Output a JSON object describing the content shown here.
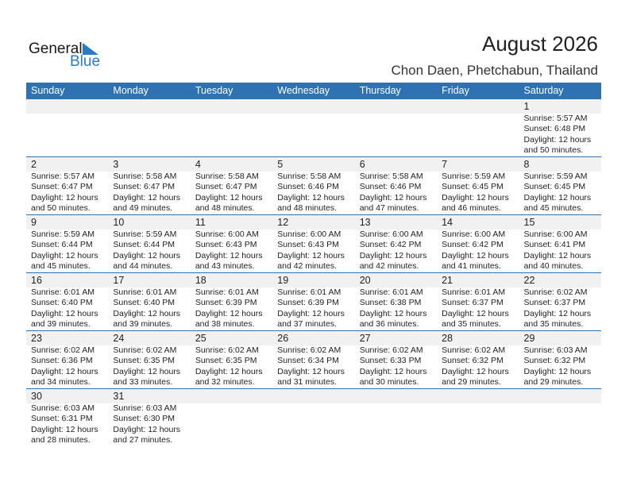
{
  "logo": {
    "word1": "General",
    "word2": "Blue"
  },
  "header": {
    "title": "August 2026",
    "location": "Chon Daen, Phetchabun, Thailand"
  },
  "colors": {
    "accent": "#2e72b4",
    "band": "#f1f1f1"
  },
  "weekdays": [
    "Sunday",
    "Monday",
    "Tuesday",
    "Wednesday",
    "Thursday",
    "Friday",
    "Saturday"
  ],
  "weeks": [
    [
      null,
      null,
      null,
      null,
      null,
      null,
      {
        "day": "1",
        "sunrise": "Sunrise: 5:57 AM",
        "sunset": "Sunset: 6:48 PM",
        "daylight1": "Daylight: 12 hours",
        "daylight2": "and 50 minutes."
      }
    ],
    [
      {
        "day": "2",
        "sunrise": "Sunrise: 5:57 AM",
        "sunset": "Sunset: 6:47 PM",
        "daylight1": "Daylight: 12 hours",
        "daylight2": "and 50 minutes."
      },
      {
        "day": "3",
        "sunrise": "Sunrise: 5:58 AM",
        "sunset": "Sunset: 6:47 PM",
        "daylight1": "Daylight: 12 hours",
        "daylight2": "and 49 minutes."
      },
      {
        "day": "4",
        "sunrise": "Sunrise: 5:58 AM",
        "sunset": "Sunset: 6:47 PM",
        "daylight1": "Daylight: 12 hours",
        "daylight2": "and 48 minutes."
      },
      {
        "day": "5",
        "sunrise": "Sunrise: 5:58 AM",
        "sunset": "Sunset: 6:46 PM",
        "daylight1": "Daylight: 12 hours",
        "daylight2": "and 48 minutes."
      },
      {
        "day": "6",
        "sunrise": "Sunrise: 5:58 AM",
        "sunset": "Sunset: 6:46 PM",
        "daylight1": "Daylight: 12 hours",
        "daylight2": "and 47 minutes."
      },
      {
        "day": "7",
        "sunrise": "Sunrise: 5:59 AM",
        "sunset": "Sunset: 6:45 PM",
        "daylight1": "Daylight: 12 hours",
        "daylight2": "and 46 minutes."
      },
      {
        "day": "8",
        "sunrise": "Sunrise: 5:59 AM",
        "sunset": "Sunset: 6:45 PM",
        "daylight1": "Daylight: 12 hours",
        "daylight2": "and 45 minutes."
      }
    ],
    [
      {
        "day": "9",
        "sunrise": "Sunrise: 5:59 AM",
        "sunset": "Sunset: 6:44 PM",
        "daylight1": "Daylight: 12 hours",
        "daylight2": "and 45 minutes."
      },
      {
        "day": "10",
        "sunrise": "Sunrise: 5:59 AM",
        "sunset": "Sunset: 6:44 PM",
        "daylight1": "Daylight: 12 hours",
        "daylight2": "and 44 minutes."
      },
      {
        "day": "11",
        "sunrise": "Sunrise: 6:00 AM",
        "sunset": "Sunset: 6:43 PM",
        "daylight1": "Daylight: 12 hours",
        "daylight2": "and 43 minutes."
      },
      {
        "day": "12",
        "sunrise": "Sunrise: 6:00 AM",
        "sunset": "Sunset: 6:43 PM",
        "daylight1": "Daylight: 12 hours",
        "daylight2": "and 42 minutes."
      },
      {
        "day": "13",
        "sunrise": "Sunrise: 6:00 AM",
        "sunset": "Sunset: 6:42 PM",
        "daylight1": "Daylight: 12 hours",
        "daylight2": "and 42 minutes."
      },
      {
        "day": "14",
        "sunrise": "Sunrise: 6:00 AM",
        "sunset": "Sunset: 6:42 PM",
        "daylight1": "Daylight: 12 hours",
        "daylight2": "and 41 minutes."
      },
      {
        "day": "15",
        "sunrise": "Sunrise: 6:00 AM",
        "sunset": "Sunset: 6:41 PM",
        "daylight1": "Daylight: 12 hours",
        "daylight2": "and 40 minutes."
      }
    ],
    [
      {
        "day": "16",
        "sunrise": "Sunrise: 6:01 AM",
        "sunset": "Sunset: 6:40 PM",
        "daylight1": "Daylight: 12 hours",
        "daylight2": "and 39 minutes."
      },
      {
        "day": "17",
        "sunrise": "Sunrise: 6:01 AM",
        "sunset": "Sunset: 6:40 PM",
        "daylight1": "Daylight: 12 hours",
        "daylight2": "and 39 minutes."
      },
      {
        "day": "18",
        "sunrise": "Sunrise: 6:01 AM",
        "sunset": "Sunset: 6:39 PM",
        "daylight1": "Daylight: 12 hours",
        "daylight2": "and 38 minutes."
      },
      {
        "day": "19",
        "sunrise": "Sunrise: 6:01 AM",
        "sunset": "Sunset: 6:39 PM",
        "daylight1": "Daylight: 12 hours",
        "daylight2": "and 37 minutes."
      },
      {
        "day": "20",
        "sunrise": "Sunrise: 6:01 AM",
        "sunset": "Sunset: 6:38 PM",
        "daylight1": "Daylight: 12 hours",
        "daylight2": "and 36 minutes."
      },
      {
        "day": "21",
        "sunrise": "Sunrise: 6:01 AM",
        "sunset": "Sunset: 6:37 PM",
        "daylight1": "Daylight: 12 hours",
        "daylight2": "and 35 minutes."
      },
      {
        "day": "22",
        "sunrise": "Sunrise: 6:02 AM",
        "sunset": "Sunset: 6:37 PM",
        "daylight1": "Daylight: 12 hours",
        "daylight2": "and 35 minutes."
      }
    ],
    [
      {
        "day": "23",
        "sunrise": "Sunrise: 6:02 AM",
        "sunset": "Sunset: 6:36 PM",
        "daylight1": "Daylight: 12 hours",
        "daylight2": "and 34 minutes."
      },
      {
        "day": "24",
        "sunrise": "Sunrise: 6:02 AM",
        "sunset": "Sunset: 6:35 PM",
        "daylight1": "Daylight: 12 hours",
        "daylight2": "and 33 minutes."
      },
      {
        "day": "25",
        "sunrise": "Sunrise: 6:02 AM",
        "sunset": "Sunset: 6:35 PM",
        "daylight1": "Daylight: 12 hours",
        "daylight2": "and 32 minutes."
      },
      {
        "day": "26",
        "sunrise": "Sunrise: 6:02 AM",
        "sunset": "Sunset: 6:34 PM",
        "daylight1": "Daylight: 12 hours",
        "daylight2": "and 31 minutes."
      },
      {
        "day": "27",
        "sunrise": "Sunrise: 6:02 AM",
        "sunset": "Sunset: 6:33 PM",
        "daylight1": "Daylight: 12 hours",
        "daylight2": "and 30 minutes."
      },
      {
        "day": "28",
        "sunrise": "Sunrise: 6:02 AM",
        "sunset": "Sunset: 6:32 PM",
        "daylight1": "Daylight: 12 hours",
        "daylight2": "and 29 minutes."
      },
      {
        "day": "29",
        "sunrise": "Sunrise: 6:03 AM",
        "sunset": "Sunset: 6:32 PM",
        "daylight1": "Daylight: 12 hours",
        "daylight2": "and 29 minutes."
      }
    ],
    [
      {
        "day": "30",
        "sunrise": "Sunrise: 6:03 AM",
        "sunset": "Sunset: 6:31 PM",
        "daylight1": "Daylight: 12 hours",
        "daylight2": "and 28 minutes."
      },
      {
        "day": "31",
        "sunrise": "Sunrise: 6:03 AM",
        "sunset": "Sunset: 6:30 PM",
        "daylight1": "Daylight: 12 hours",
        "daylight2": "and 27 minutes."
      },
      null,
      null,
      null,
      null,
      null
    ]
  ]
}
